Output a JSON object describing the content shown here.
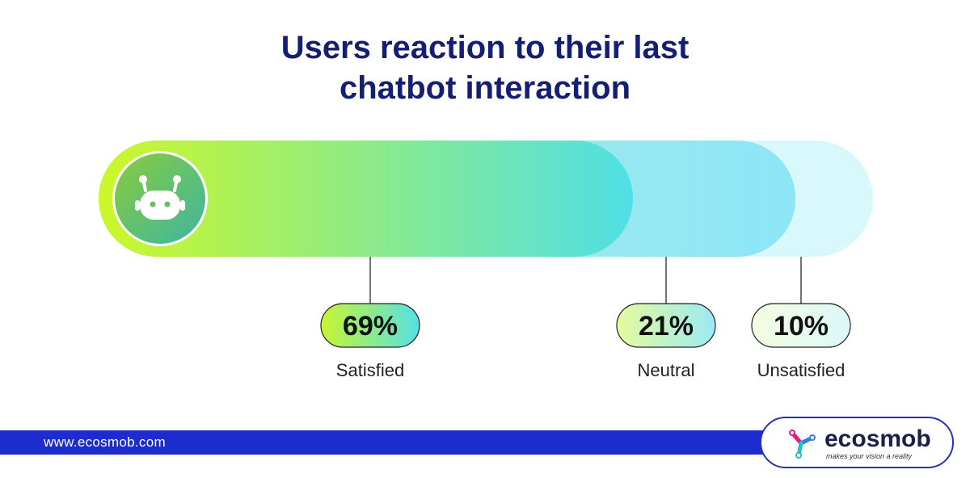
{
  "title_lines": [
    "Users reaction to their last",
    "chatbot interaction"
  ],
  "chart_data": {
    "type": "bar",
    "orientation": "horizontal-stacked",
    "title": "Users reaction to their last chatbot interaction",
    "categories": [
      "Satisfied",
      "Neutral",
      "Unsatisfied"
    ],
    "values": [
      69,
      21,
      10
    ],
    "value_labels": [
      "69%",
      "21%",
      "10%"
    ],
    "unit": "%",
    "colors": {
      "satisfied_start": "#ccf72a",
      "satisfied_end": "#4fdfe6",
      "neutral_start": "#b4f0d8",
      "neutral_end": "#8ce6f7",
      "unsatisfied": "#d9f8fb"
    },
    "icon": "robot-icon"
  },
  "footer": {
    "url": "www.ecosmob.com",
    "bar_color": "#1d2ccd"
  },
  "logo": {
    "name": "ecosmob",
    "tagline": "makes your vision a reality",
    "icon": "ecosmob-logo-icon"
  }
}
